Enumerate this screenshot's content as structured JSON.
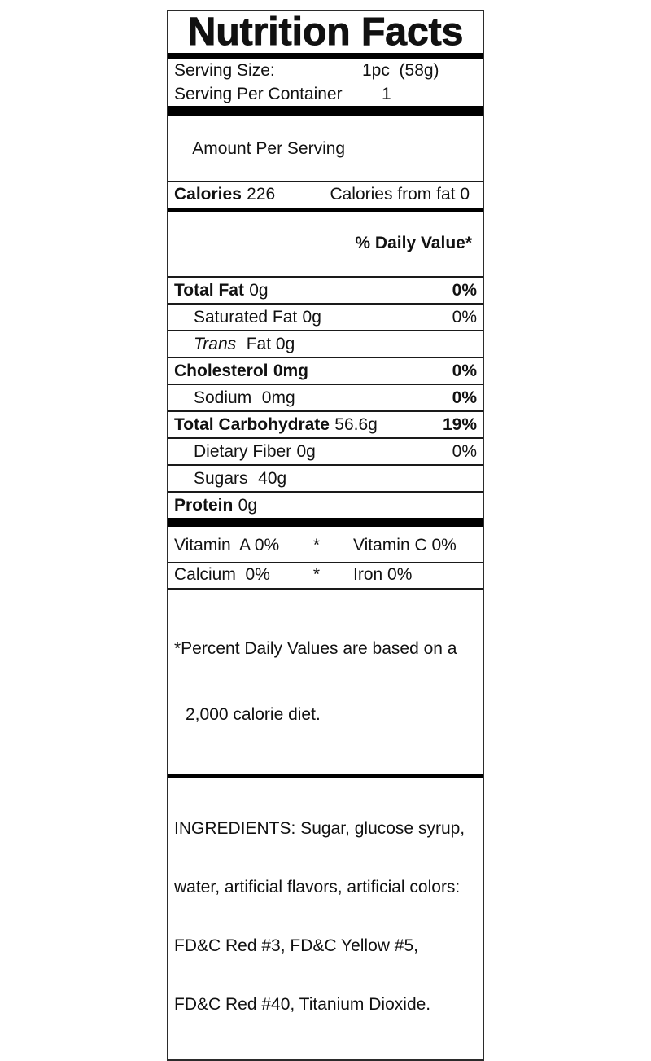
{
  "label": {
    "title": "Nutrition Facts",
    "serving_size": {
      "label": "Serving Size:",
      "value": "1pc  (58g)"
    },
    "serving_per_container": {
      "label": "Serving Per Container",
      "value": "1"
    },
    "amount_per_serving": "Amount Per Serving",
    "calories": {
      "label": "Calories",
      "value": "226"
    },
    "calories_from_fat": "Calories from fat 0",
    "daily_value_header": "% Daily Value*",
    "nutrients": [
      {
        "name": "Total Fat",
        "amount": "0g",
        "dv": "0%"
      },
      {
        "name": "Saturated Fat",
        "amount": "0g",
        "dv": "0%"
      },
      {
        "name": "Trans",
        "amount": "Fat 0g",
        "dv": ""
      },
      {
        "name": "Cholesterol",
        "amount": "0mg",
        "dv": "0%"
      },
      {
        "name": "Sodium",
        "amount": "0mg",
        "dv": "0%"
      },
      {
        "name": "Total Carbohydrate",
        "amount": "56.6g",
        "dv": "19%"
      },
      {
        "name": "Dietary Fiber",
        "amount": "0g",
        "dv": "0%"
      },
      {
        "name": "Sugars",
        "amount": "40g",
        "dv": ""
      },
      {
        "name": "Protein",
        "amount": "0g",
        "dv": ""
      }
    ],
    "micronutrients": {
      "vitamin_a": "Vitamin  A 0%",
      "vitamin_c": "Vitamin C 0%",
      "calcium": "Calcium  0%",
      "iron": "Iron 0%",
      "separator": "*"
    },
    "footnote": {
      "line1": "*Percent Daily Values are based on a",
      "line2": "2,000 calorie diet."
    },
    "ingredients": {
      "line1": "INGREDIENTS: Sugar, glucose syrup,",
      "line2": "water, artificial flavors, artificial colors:",
      "line3": "FD&C Red #3, FD&C Yellow #5,",
      "line4": "FD&C Red #40, Titanium Dioxide."
    },
    "colors": {
      "text": "#111111",
      "rule": "#1a1a1a",
      "background": "#ffffff"
    }
  }
}
